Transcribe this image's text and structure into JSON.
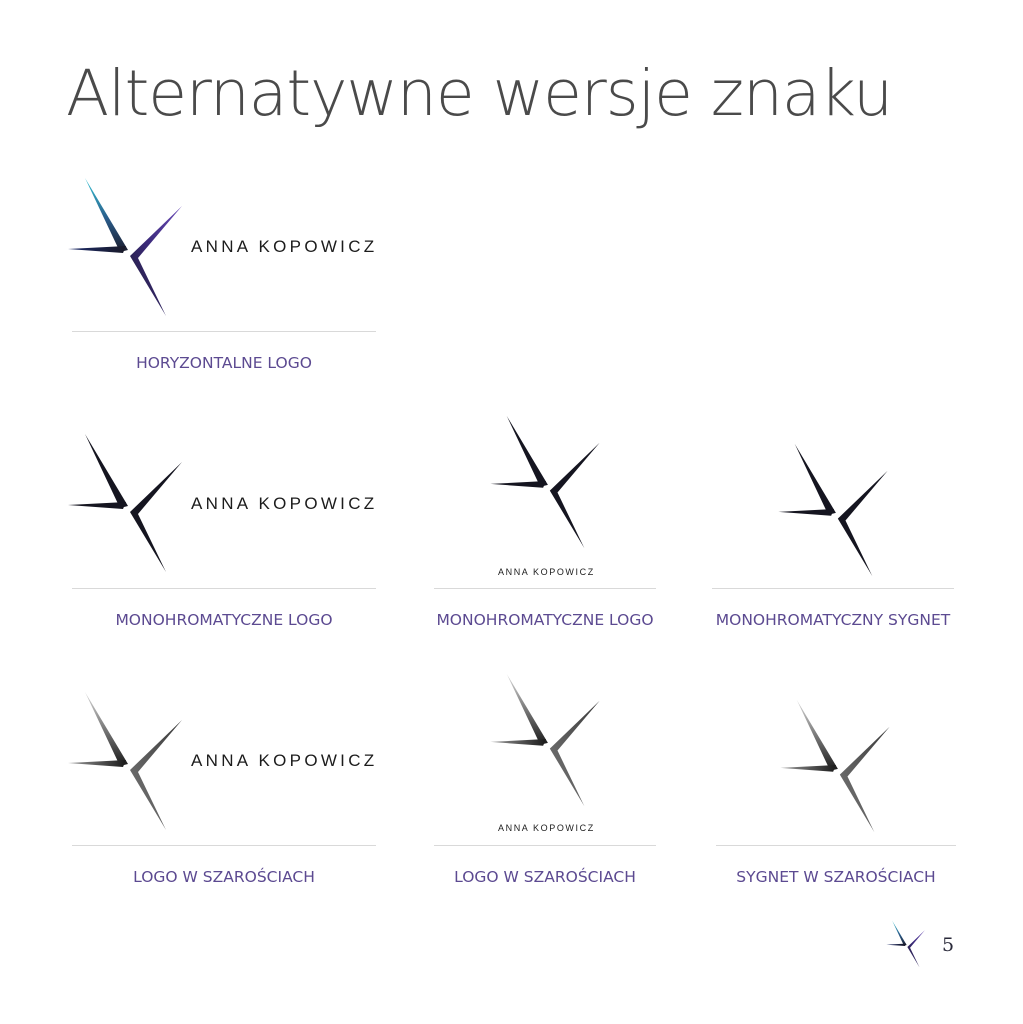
{
  "page": {
    "title": "Alternatywne wersje znaku",
    "page_number": "5"
  },
  "brand": {
    "name": "ANNA KOPOWICZ",
    "colors": {
      "accent_teal": "#2bb3c8",
      "accent_purple": "#5a3aa0",
      "dark": "#1a1a28",
      "caption": "#5c4a91"
    }
  },
  "variants": [
    {
      "caption": "HORYZONTALNE LOGO",
      "style": "color",
      "layout": "horizontal"
    },
    {
      "caption": "MONOHROMATYCZNE LOGO",
      "style": "mono",
      "layout": "horizontal"
    },
    {
      "caption": "MONOHROMATYCZNE LOGO",
      "style": "mono",
      "layout": "stacked"
    },
    {
      "caption": "MONOHROMATYCZNY SYGNET",
      "style": "mono",
      "layout": "mark-only"
    },
    {
      "caption": "LOGO W SZAROŚCIACH",
      "style": "grayscale",
      "layout": "horizontal"
    },
    {
      "caption": "LOGO W SZAROŚCIACH",
      "style": "grayscale",
      "layout": "stacked"
    },
    {
      "caption": "SYGNET W SZAROŚCIACH",
      "style": "grayscale",
      "layout": "mark-only"
    }
  ]
}
